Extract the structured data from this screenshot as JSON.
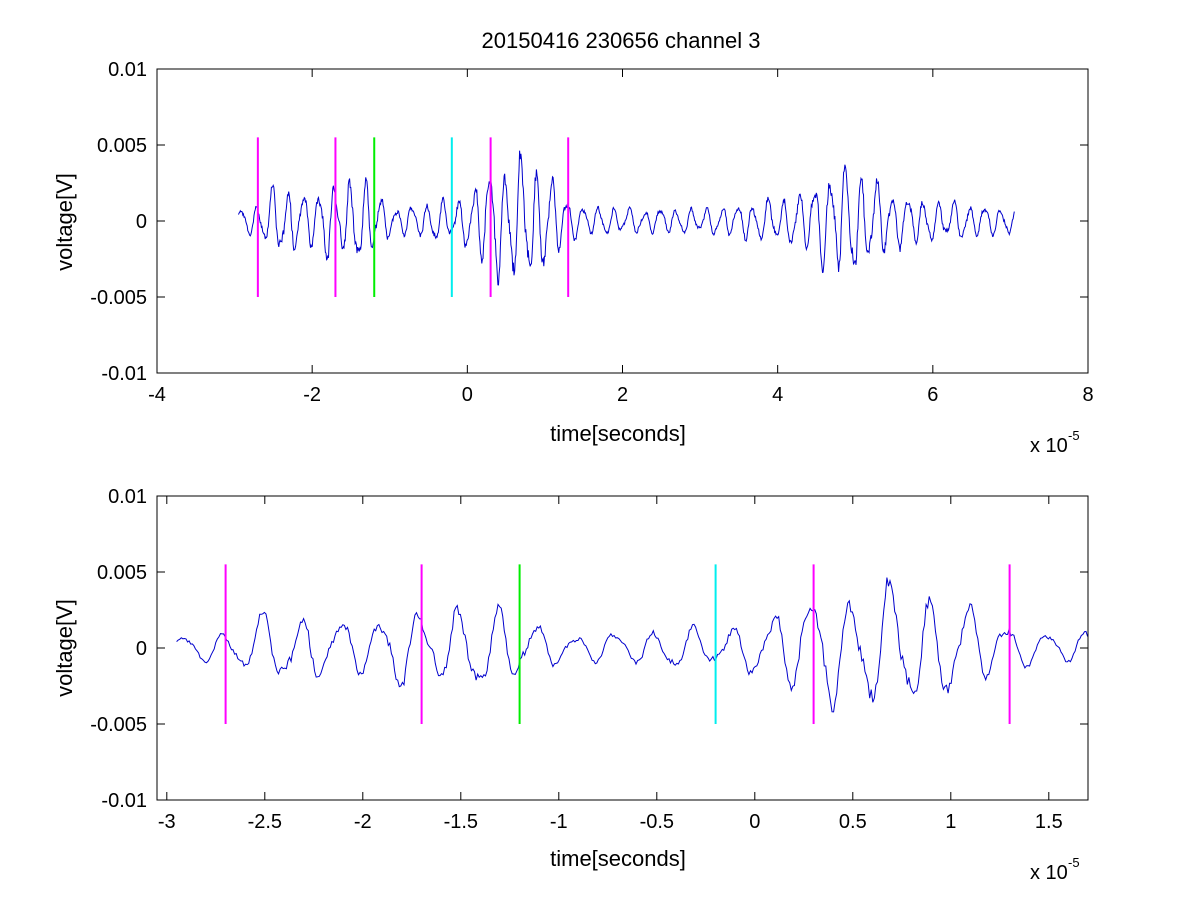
{
  "chart_data": [
    {
      "type": "line",
      "title": "20150416 230656 channel 3",
      "xlabel": "time[seconds]",
      "ylabel": "voltage[V]",
      "x_exponent_label": "x 10",
      "x_exponent": "-5",
      "xlim": [
        -4,
        8
      ],
      "ylim": [
        -0.01,
        0.01
      ],
      "x_unit_scale": 1e-05,
      "x_ticks": [
        "-4",
        "-2",
        "0",
        "2",
        "4",
        "6",
        "8"
      ],
      "y_ticks": [
        "-0.01",
        "-0.005",
        "0",
        "0.005",
        "0.01"
      ],
      "grid": false,
      "series": [
        {
          "color": "#0000cc",
          "x_range": [
            -2.95,
            7.05
          ],
          "envelope": [
            [
              -2.95,
              0.0008
            ],
            [
              -2.7,
              0.0012
            ],
            [
              -2.5,
              0.0025
            ],
            [
              -2.3,
              0.0025
            ],
            [
              -2.1,
              0.0018
            ],
            [
              -1.9,
              0.0025
            ],
            [
              -1.7,
              0.0028
            ],
            [
              -1.5,
              0.0028
            ],
            [
              -1.3,
              0.003
            ],
            [
              -1.15,
              0.0018
            ],
            [
              -1.0,
              0.0012
            ],
            [
              -0.8,
              0.001
            ],
            [
              -0.6,
              0.0012
            ],
            [
              -0.4,
              0.0015
            ],
            [
              -0.2,
              0.0014
            ],
            [
              0.0,
              0.0018
            ],
            [
              0.2,
              0.0035
            ],
            [
              0.4,
              0.004
            ],
            [
              0.6,
              0.0045
            ],
            [
              0.8,
              0.0045
            ],
            [
              1.0,
              0.0035
            ],
            [
              1.2,
              0.0025
            ],
            [
              1.4,
              0.0012
            ],
            [
              2.0,
              0.0009
            ],
            [
              3.0,
              0.0009
            ],
            [
              3.5,
              0.0012
            ],
            [
              3.8,
              0.0015
            ],
            [
              4.2,
              0.0018
            ],
            [
              4.5,
              0.0028
            ],
            [
              4.8,
              0.0042
            ],
            [
              5.0,
              0.004
            ],
            [
              5.3,
              0.0028
            ],
            [
              5.6,
              0.0018
            ],
            [
              6.0,
              0.0015
            ],
            [
              6.5,
              0.0012
            ],
            [
              7.05,
              0.0009
            ]
          ],
          "dominant_period": 0.2
        }
      ],
      "markers": [
        {
          "x": -2.7,
          "color": "#ff00ff",
          "y_range": [
            -0.005,
            0.0055
          ]
        },
        {
          "x": -1.7,
          "color": "#ff00ff",
          "y_range": [
            -0.005,
            0.0055
          ]
        },
        {
          "x": -1.2,
          "color": "#00ee00",
          "y_range": [
            -0.005,
            0.0055
          ]
        },
        {
          "x": -0.2,
          "color": "#00eeee",
          "y_range": [
            -0.005,
            0.0055
          ]
        },
        {
          "x": 0.3,
          "color": "#ff00ff",
          "y_range": [
            -0.005,
            0.0055
          ]
        },
        {
          "x": 1.3,
          "color": "#ff00ff",
          "y_range": [
            -0.005,
            0.0055
          ]
        }
      ]
    },
    {
      "type": "line",
      "title": "",
      "xlabel": "time[seconds]",
      "ylabel": "voltage[V]",
      "x_exponent_label": "x 10",
      "x_exponent": "-5",
      "xlim": [
        -3.05,
        1.7
      ],
      "ylim": [
        -0.01,
        0.01
      ],
      "x_unit_scale": 1e-05,
      "x_ticks": [
        "-3",
        "-2.5",
        "-2",
        "-1.5",
        "-1",
        "-0.5",
        "0",
        "0.5",
        "1",
        "1.5"
      ],
      "y_ticks": [
        "-0.01",
        "-0.005",
        "0",
        "0.005",
        "0.01"
      ],
      "grid": false,
      "series": [
        {
          "color": "#0000cc",
          "x_range": [
            -2.95,
            1.7
          ],
          "envelope": [
            [
              -2.95,
              0.0008
            ],
            [
              -2.7,
              0.0012
            ],
            [
              -2.5,
              0.0025
            ],
            [
              -2.3,
              0.0025
            ],
            [
              -2.1,
              0.0018
            ],
            [
              -1.9,
              0.0025
            ],
            [
              -1.7,
              0.0028
            ],
            [
              -1.5,
              0.0028
            ],
            [
              -1.3,
              0.003
            ],
            [
              -1.15,
              0.0018
            ],
            [
              -1.0,
              0.0012
            ],
            [
              -0.8,
              0.001
            ],
            [
              -0.6,
              0.0012
            ],
            [
              -0.4,
              0.0015
            ],
            [
              -0.2,
              0.0014
            ],
            [
              0.0,
              0.0018
            ],
            [
              0.2,
              0.0035
            ],
            [
              0.4,
              0.004
            ],
            [
              0.6,
              0.0045
            ],
            [
              0.8,
              0.0045
            ],
            [
              1.0,
              0.0035
            ],
            [
              1.2,
              0.0025
            ],
            [
              1.4,
              0.0012
            ],
            [
              1.7,
              0.0012
            ]
          ],
          "dominant_period": 0.2
        }
      ],
      "markers": [
        {
          "x": -2.7,
          "color": "#ff00ff",
          "y_range": [
            -0.005,
            0.0055
          ]
        },
        {
          "x": -1.7,
          "color": "#ff00ff",
          "y_range": [
            -0.005,
            0.0055
          ]
        },
        {
          "x": -1.2,
          "color": "#00ee00",
          "y_range": [
            -0.005,
            0.0055
          ]
        },
        {
          "x": -0.2,
          "color": "#00eeee",
          "y_range": [
            -0.005,
            0.0055
          ]
        },
        {
          "x": 0.3,
          "color": "#ff00ff",
          "y_range": [
            -0.005,
            0.0055
          ]
        },
        {
          "x": 1.3,
          "color": "#ff00ff",
          "y_range": [
            -0.005,
            0.0055
          ]
        }
      ]
    }
  ]
}
